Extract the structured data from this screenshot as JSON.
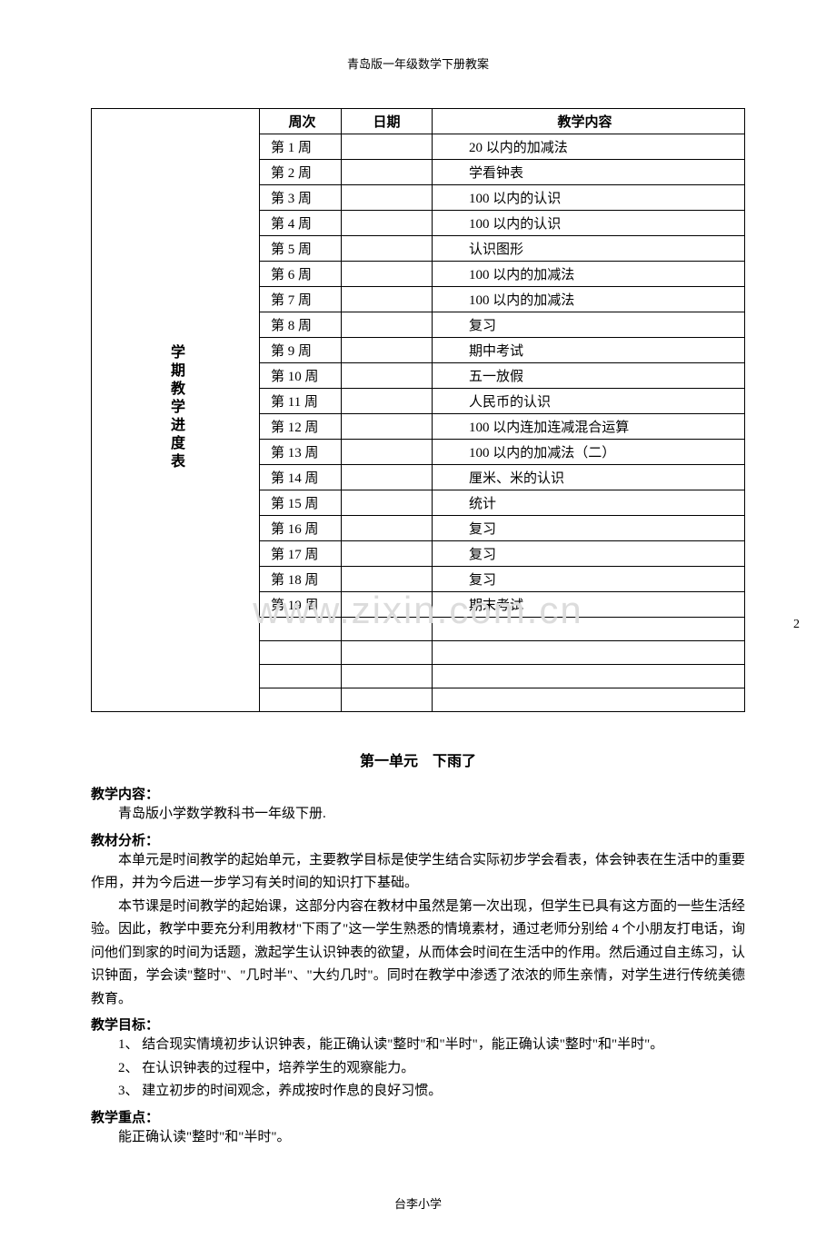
{
  "header": "青岛版一年级数学下册教案",
  "table": {
    "vertical_label": "学期教学进度表",
    "columns": {
      "week": "周次",
      "date": "日期",
      "content": "教学内容"
    },
    "rows": [
      {
        "week": "第 1 周",
        "date": "",
        "content": "20 以内的加减法"
      },
      {
        "week": "第 2 周",
        "date": "",
        "content": "学看钟表"
      },
      {
        "week": "第 3 周",
        "date": "",
        "content": "100 以内的认识"
      },
      {
        "week": "第 4 周",
        "date": "",
        "content": "100 以内的认识"
      },
      {
        "week": "第 5 周",
        "date": "",
        "content": "认识图形"
      },
      {
        "week": "第 6 周",
        "date": "",
        "content": "100 以内的加减法"
      },
      {
        "week": "第 7 周",
        "date": "",
        "content": "100 以内的加减法"
      },
      {
        "week": "第 8 周",
        "date": "",
        "content": "复习"
      },
      {
        "week": "第 9 周",
        "date": "",
        "content": "期中考试"
      },
      {
        "week": "第 10 周",
        "date": "",
        "content": "五一放假"
      },
      {
        "week": "第 11 周",
        "date": "",
        "content": "人民币的认识"
      },
      {
        "week": "第 12 周",
        "date": "",
        "content": "100 以内连加连减混合运算"
      },
      {
        "week": "第 13 周",
        "date": "",
        "content": "100 以内的加减法（二）"
      },
      {
        "week": "第 14 周",
        "date": "",
        "content": "厘米、米的认识"
      },
      {
        "week": "第 15 周",
        "date": "",
        "content": "统计"
      },
      {
        "week": "第 16 周",
        "date": "",
        "content": "复习"
      },
      {
        "week": "第 17 周",
        "date": "",
        "content": "复习"
      },
      {
        "week": "第 18 周",
        "date": "",
        "content": "复习"
      },
      {
        "week": "第 19 周",
        "date": "",
        "content": "期末考试"
      }
    ],
    "empty_rows": 4
  },
  "watermark": "www.zixin.com.cn",
  "page_number": "2",
  "unit": {
    "title": "第一单元　下雨了",
    "sections": [
      {
        "label": "教学内容：",
        "paragraphs": [
          "青岛版小学数学教科书一年级下册."
        ]
      },
      {
        "label": "教材分析：",
        "paragraphs": [
          "本单元是时间教学的起始单元，主要教学目标是使学生结合实际初步学会看表，体会钟表在生活中的重要作用，并为今后进一步学习有关时间的知识打下基础。",
          "本节课是时间教学的起始课，这部分内容在教材中虽然是第一次出现，但学生已具有这方面的一些生活经验。因此，教学中要充分利用教材\"下雨了\"这一学生熟悉的情境素材，通过老师分别给 4 个小朋友打电话，询问他们到家的时间为话题，激起学生认识钟表的欲望，从而体会时间在生活中的作用。然后通过自主练习，认识钟面，学会读\"整时\"、\"几时半\"、\"大约几时\"。同时在教学中渗透了浓浓的师生亲情，对学生进行传统美德教育。"
        ]
      },
      {
        "label": "教学目标：",
        "items": [
          "1、 结合现实情境初步认识钟表，能正确认读\"整时\"和\"半时\"，能正确认读\"整时\"和\"半时\"。",
          "2、 在认识钟表的过程中，培养学生的观察能力。",
          "3、 建立初步的时间观念，养成按时作息的良好习惯。"
        ]
      },
      {
        "label": "教学重点：",
        "paragraphs": [
          "能正确认读\"整时\"和\"半时\"。"
        ]
      }
    ]
  },
  "footer": "台李小学"
}
